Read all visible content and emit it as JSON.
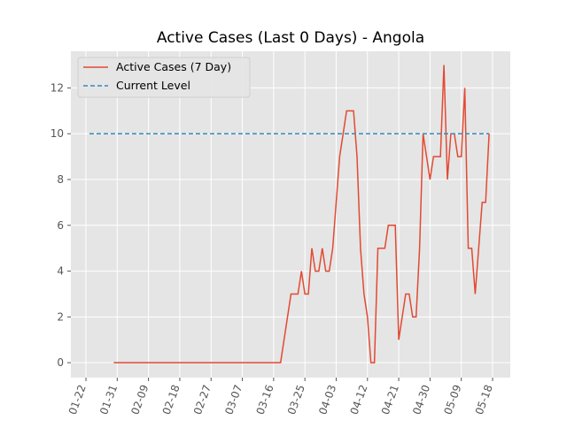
{
  "chart_data": {
    "type": "line",
    "title": "Active Cases (Last 0 Days) - Angola",
    "x": [
      "01-22",
      "01-23",
      "01-24",
      "01-25",
      "01-26",
      "01-27",
      "01-28",
      "01-29",
      "01-30",
      "01-31",
      "02-01",
      "02-02",
      "02-03",
      "02-04",
      "02-05",
      "02-06",
      "02-07",
      "02-08",
      "02-09",
      "02-10",
      "02-11",
      "02-12",
      "02-13",
      "02-14",
      "02-15",
      "02-16",
      "02-17",
      "02-18",
      "02-19",
      "02-20",
      "02-21",
      "02-22",
      "02-23",
      "02-24",
      "02-25",
      "02-26",
      "02-27",
      "02-28",
      "02-29",
      "03-01",
      "03-02",
      "03-03",
      "03-04",
      "03-05",
      "03-06",
      "03-07",
      "03-08",
      "03-09",
      "03-10",
      "03-11",
      "03-12",
      "03-13",
      "03-14",
      "03-15",
      "03-16",
      "03-17",
      "03-18",
      "03-19",
      "03-20",
      "03-21",
      "03-22",
      "03-23",
      "03-24",
      "03-25",
      "03-26",
      "03-27",
      "03-28",
      "03-29",
      "03-30",
      "03-31",
      "04-01",
      "04-02",
      "04-03",
      "04-04",
      "04-05",
      "04-06",
      "04-07",
      "04-08",
      "04-09",
      "04-10",
      "04-11",
      "04-12",
      "04-13",
      "04-14",
      "04-15",
      "04-16",
      "04-17",
      "04-18",
      "04-19",
      "04-20",
      "04-21",
      "04-22",
      "04-23",
      "04-24",
      "04-25",
      "04-26",
      "04-27",
      "04-28",
      "04-29",
      "04-30",
      "05-01",
      "05-02",
      "05-03",
      "05-04",
      "05-05",
      "05-06",
      "05-07",
      "05-08",
      "05-09",
      "05-10",
      "05-11",
      "05-12",
      "05-13",
      "05-14",
      "05-15",
      "05-16",
      "05-17",
      "05-18"
    ],
    "series": [
      {
        "name": "Active Cases (7 Day)",
        "color": "#E24A33",
        "dash": false,
        "values": [
          null,
          null,
          null,
          null,
          null,
          null,
          null,
          null,
          0,
          0,
          0,
          0,
          0,
          0,
          0,
          0,
          0,
          0,
          0,
          0,
          0,
          0,
          0,
          0,
          0,
          0,
          0,
          0,
          0,
          0,
          0,
          0,
          0,
          0,
          0,
          0,
          0,
          0,
          0,
          0,
          0,
          0,
          0,
          0,
          0,
          0,
          0,
          0,
          0,
          0,
          0,
          0,
          0,
          0,
          0,
          0,
          0,
          1,
          2,
          3,
          3,
          3,
          4,
          3,
          3,
          5,
          4,
          4,
          5,
          4,
          4,
          5,
          7,
          9,
          10,
          11,
          11,
          11,
          9,
          5,
          3,
          2,
          0,
          0,
          5,
          5,
          5,
          6,
          6,
          6,
          1,
          2,
          3,
          3,
          2,
          2,
          5,
          10,
          9,
          8,
          9,
          9,
          9,
          13,
          8,
          10,
          10,
          9,
          9,
          12,
          5,
          5,
          3,
          5,
          7,
          7,
          10,
          null
        ]
      },
      {
        "name": "Current Level",
        "color": "#348ABD",
        "dash": true,
        "values": [
          null,
          10,
          10,
          10,
          10,
          10,
          10,
          10,
          10,
          10,
          10,
          10,
          10,
          10,
          10,
          10,
          10,
          10,
          10,
          10,
          10,
          10,
          10,
          10,
          10,
          10,
          10,
          10,
          10,
          10,
          10,
          10,
          10,
          10,
          10,
          10,
          10,
          10,
          10,
          10,
          10,
          10,
          10,
          10,
          10,
          10,
          10,
          10,
          10,
          10,
          10,
          10,
          10,
          10,
          10,
          10,
          10,
          10,
          10,
          10,
          10,
          10,
          10,
          10,
          10,
          10,
          10,
          10,
          10,
          10,
          10,
          10,
          10,
          10,
          10,
          10,
          10,
          10,
          10,
          10,
          10,
          10,
          10,
          10,
          10,
          10,
          10,
          10,
          10,
          10,
          10,
          10,
          10,
          10,
          10,
          10,
          10,
          10,
          10,
          10,
          10,
          10,
          10,
          10,
          10,
          10,
          10,
          10,
          10,
          10,
          10,
          10,
          10,
          10,
          10,
          10,
          10,
          null
        ]
      }
    ],
    "xticks": [
      "01-22",
      "01-31",
      "02-09",
      "02-18",
      "02-27",
      "03-07",
      "03-16",
      "03-25",
      "04-03",
      "04-12",
      "04-21",
      "04-30",
      "05-09",
      "05-18"
    ],
    "ylim": [
      -0.65,
      13.6
    ],
    "yticks": [
      0,
      2,
      4,
      6,
      8,
      10,
      12
    ],
    "grid": true,
    "legend": "upper left"
  }
}
